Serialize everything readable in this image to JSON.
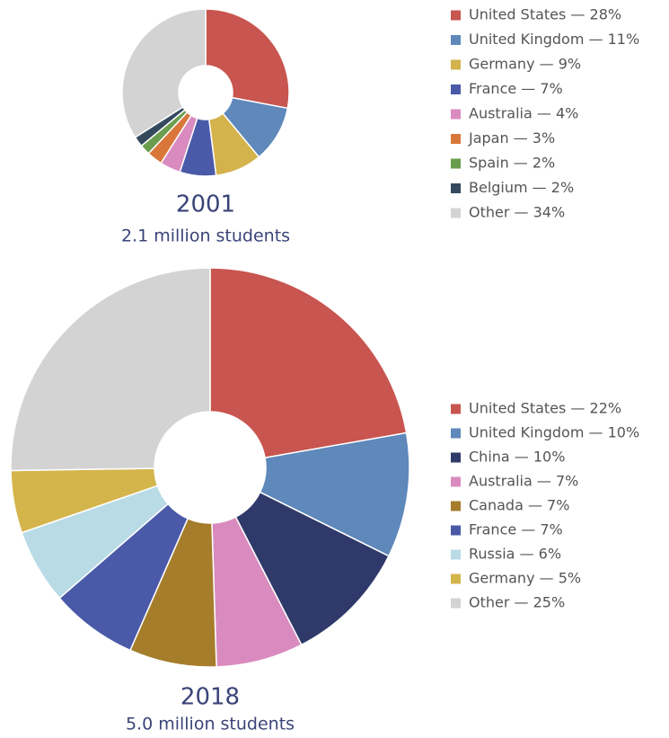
{
  "chart_data": [
    {
      "type": "pie",
      "title": "2001",
      "subtitle": "2.1 million students",
      "categories": [
        "United States — 28%",
        "United Kingdom — 11%",
        "Germany — 9%",
        "France — 7%",
        "Australia — 4%",
        "Japan — 3%",
        "Spain — 2%",
        "Belgium — 2%",
        "Other — 34%"
      ],
      "values": [
        28,
        11,
        9,
        7,
        4,
        3,
        2,
        2,
        34
      ],
      "colors": [
        "#c8554f",
        "#5f88bb",
        "#d4b24c",
        "#4a5aa8",
        "#d98bbf",
        "#d9773b",
        "#6a9e4e",
        "#34495e",
        "#d3d3d3"
      ]
    },
    {
      "type": "pie",
      "title": "2018",
      "subtitle": "5.0 million students",
      "categories": [
        "United States — 22%",
        "United Kingdom — 10%",
        "China — 10%",
        "Australia — 7%",
        "Canada — 7%",
        "France — 7%",
        "Russia — 6%",
        "Germany — 5%",
        "Other — 25%"
      ],
      "values": [
        22,
        10,
        10,
        7,
        7,
        7,
        6,
        5,
        25
      ],
      "colors": [
        "#c8554f",
        "#5f88bb",
        "#2f3a6a",
        "#d98bbf",
        "#a57d2b",
        "#4a5aa8",
        "#b9dbe6",
        "#d4b54c",
        "#d3d3d3"
      ]
    }
  ]
}
